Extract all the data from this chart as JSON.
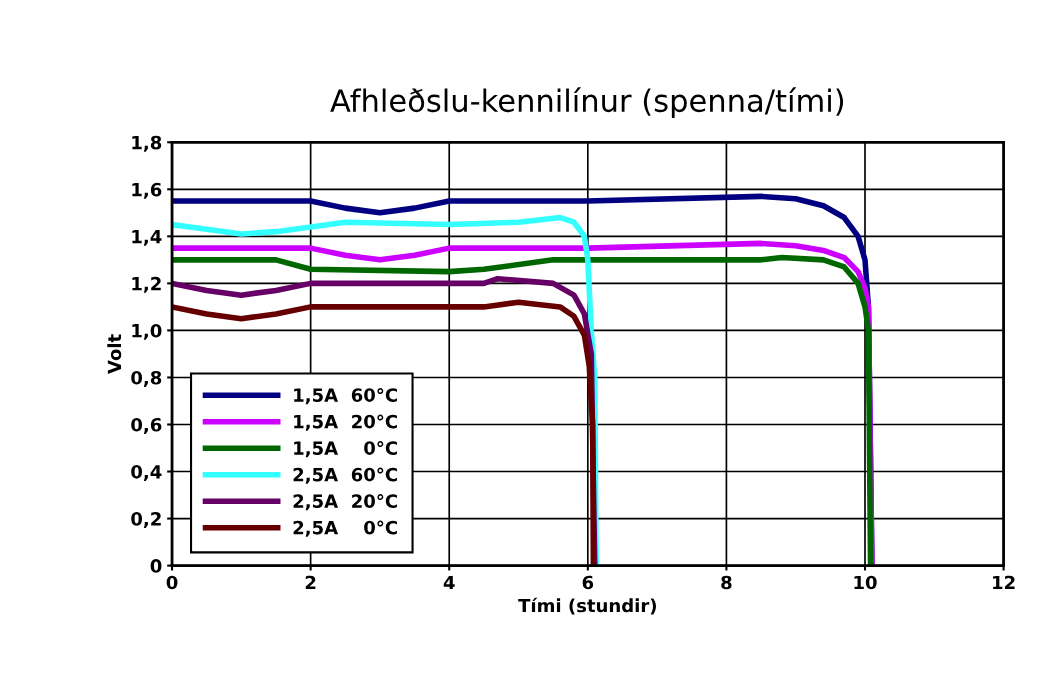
{
  "chart_data": {
    "type": "line",
    "title": "Afhleðslu-kennilínur (spenna/tími)",
    "xlabel": "Tími (stundir)",
    "ylabel": "Volt",
    "xlim": [
      0,
      12
    ],
    "xticks": [
      0,
      2,
      4,
      6,
      8,
      10,
      12
    ],
    "ylim": [
      0,
      1.8
    ],
    "yticks": [
      0,
      {
        "value": 0.2,
        "label": "0,2"
      },
      {
        "value": 0.4,
        "label": "0,4"
      },
      {
        "value": 0.6,
        "label": "0,6"
      },
      {
        "value": 0.8,
        "label": "0,8"
      },
      {
        "value": 1.0,
        "label": "1,0"
      },
      {
        "value": 1.2,
        "label": "1,2"
      },
      {
        "value": 1.4,
        "label": "1,4"
      },
      {
        "value": 1.6,
        "label": "1,6"
      },
      {
        "value": 1.8,
        "label": "1,8"
      }
    ],
    "grid": true,
    "legend": "bottom left",
    "marker": "none",
    "line_style": "solid",
    "series": [
      {
        "name": "1,5A  60°C",
        "color": "#000080",
        "x": [
          0,
          2,
          2.5,
          3,
          3.5,
          4,
          6,
          8.5,
          9,
          9.4,
          9.7,
          9.9,
          10.0,
          10.05,
          10.1
        ],
        "values": [
          1.55,
          1.55,
          1.52,
          1.5,
          1.52,
          1.55,
          1.55,
          1.57,
          1.56,
          1.53,
          1.48,
          1.4,
          1.3,
          1.1,
          0
        ]
      },
      {
        "name": "1,5A  20°C",
        "color": "#cc00ff",
        "x": [
          0,
          2,
          2.5,
          3,
          3.5,
          4,
          6,
          8.5,
          9,
          9.4,
          9.7,
          9.9,
          10.0,
          10.05,
          10.1
        ],
        "values": [
          1.35,
          1.35,
          1.32,
          1.3,
          1.32,
          1.35,
          1.35,
          1.37,
          1.36,
          1.34,
          1.31,
          1.25,
          1.18,
          1.1,
          0
        ]
      },
      {
        "name": "1,5A    0°C",
        "color": "#006600",
        "x": [
          0,
          1.5,
          2,
          4,
          4.5,
          5.5,
          8.5,
          8.8,
          9.4,
          9.7,
          9.9,
          10.0,
          10.05,
          10.08
        ],
        "values": [
          1.3,
          1.3,
          1.26,
          1.25,
          1.26,
          1.3,
          1.3,
          1.31,
          1.3,
          1.27,
          1.2,
          1.1,
          1.0,
          0
        ]
      },
      {
        "name": "2,5A  60°C",
        "color": "#33ffff",
        "x": [
          0,
          0.5,
          1,
          1.5,
          2,
          2.5,
          4,
          5,
          5.6,
          5.8,
          5.95,
          6.0,
          6.05,
          6.1,
          6.12
        ],
        "values": [
          1.45,
          1.43,
          1.41,
          1.42,
          1.44,
          1.46,
          1.45,
          1.46,
          1.48,
          1.46,
          1.4,
          1.3,
          1.0,
          0.8,
          0
        ]
      },
      {
        "name": "2,5A  20°C",
        "color": "#660066",
        "x": [
          0,
          0.5,
          1,
          1.5,
          2,
          4.5,
          4.7,
          5.5,
          5.8,
          5.95,
          6.05,
          6.1
        ],
        "values": [
          1.2,
          1.17,
          1.15,
          1.17,
          1.2,
          1.2,
          1.22,
          1.2,
          1.15,
          1.07,
          0.9,
          0
        ]
      },
      {
        "name": "2,5A    0°C",
        "color": "#660000",
        "x": [
          0,
          0.5,
          1,
          1.5,
          2,
          4.5,
          5,
          5.6,
          5.8,
          5.95,
          6.02,
          6.07,
          6.08
        ],
        "values": [
          1.1,
          1.07,
          1.05,
          1.07,
          1.1,
          1.1,
          1.12,
          1.1,
          1.06,
          0.98,
          0.85,
          0.6,
          0
        ]
      }
    ]
  }
}
